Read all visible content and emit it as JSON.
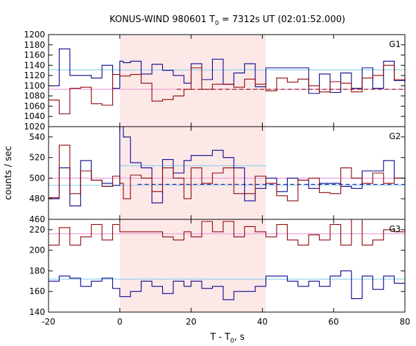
{
  "chart_data": {
    "type": "line",
    "title_main": "KONUS-WIND 980601 T",
    "title_sub": "0",
    "title_rest": " = 7312s UT (02:01:52.000)",
    "xlabel_main": "T - T",
    "xlabel_sub": "0",
    "xlabel_rest": ", s",
    "ylabel": "counts / sec",
    "xlim": [
      -20,
      80
    ],
    "xticks": [
      "-20",
      "0",
      "20",
      "40",
      "60",
      "80"
    ],
    "xtick_values": [
      -20,
      0,
      20,
      40,
      60,
      80
    ],
    "shaded_interval": [
      0,
      41
    ],
    "colors": {
      "shade": "#fde8e8",
      "dark_red": "#8b0000",
      "blue": "#00008b",
      "light_blue": "#87ceeb",
      "pink": "#ee99dd"
    },
    "panels": [
      {
        "label": "G1",
        "ylim": [
          1020,
          1200
        ],
        "yticks": [
          "1020",
          "1040",
          "1060",
          "1080",
          "1100",
          "1120",
          "1140",
          "1160",
          "1180",
          "1200"
        ],
        "ytick_values": [
          1020,
          1040,
          1060,
          1080,
          1100,
          1120,
          1140,
          1160,
          1180,
          1200
        ],
        "edges": [
          -20,
          -17,
          -14,
          -11,
          -8,
          -5,
          -2,
          0,
          1,
          3,
          6,
          9,
          12,
          15,
          18,
          20,
          23,
          26,
          29,
          32,
          35,
          38,
          41,
          44,
          47,
          50,
          53,
          56,
          59,
          62,
          65,
          68,
          71,
          74,
          77,
          80
        ],
        "series": [
          {
            "color": "blue",
            "values": [
              1100,
              1172,
              1120,
              1120,
              1115,
              1140,
              1095,
              1148,
              1145,
              1148,
              1123,
              1142,
              1130,
              1120,
              1105,
              1143,
              1112,
              1152,
              1103,
              1125,
              1143,
              1098,
              1135,
              1135,
              1135,
              1135,
              1085,
              1123,
              1087,
              1125,
              1095,
              1135,
              1095,
              1148,
              1110,
              1115
            ]
          },
          {
            "color": "dark_red",
            "values": [
              1072,
              1045,
              1095,
              1097,
              1065,
              1062,
              1122,
              1119,
              1119,
              1122,
              1105,
              1070,
              1073,
              1080,
              1093,
              1135,
              1093,
              1103,
              1103,
              1097,
              1113,
              1103,
              1090,
              1115,
              1107,
              1113,
              1100,
              1088,
              1108,
              1105,
              1088,
              1115,
              1120,
              1140,
              1112,
              1108
            ]
          }
        ],
        "ref_lines": [
          {
            "color": "light_blue",
            "value": 1131,
            "x_range": [
              -20,
              80
            ],
            "dashed": false
          },
          {
            "color": "pink",
            "value": 1093,
            "x_range": [
              -20,
              80
            ],
            "dashed": false
          },
          {
            "color": "dark_red",
            "value": 1093,
            "x_range": [
              16,
              80
            ],
            "dashed": true
          }
        ]
      },
      {
        "label": "G2",
        "ylim": [
          460,
          550
        ],
        "yticks": [
          "460",
          "480",
          "500",
          "520",
          "540"
        ],
        "ytick_values": [
          460,
          480,
          500,
          520,
          540
        ],
        "edges": [
          -20,
          -17,
          -14,
          -11,
          -8,
          -5,
          -2,
          0,
          1,
          3,
          6,
          9,
          12,
          15,
          18,
          20,
          23,
          26,
          29,
          32,
          35,
          38,
          41,
          44,
          47,
          50,
          53,
          56,
          59,
          62,
          65,
          68,
          71,
          74,
          77,
          80
        ],
        "series": [
          {
            "color": "blue",
            "values": [
              480,
              510,
              473,
              517,
              498,
              495,
              493,
              550,
              540,
              515,
              510,
              476,
              518,
              505,
              517,
              522,
              522,
              527,
              520,
              510,
              478,
              490,
              500,
              487,
              500,
              498,
              490,
              495,
              495,
              492,
              490,
              507,
              507,
              517,
              500,
              494
            ]
          },
          {
            "color": "dark_red",
            "values": [
              481,
              532,
              485,
              507,
              498,
              492,
              502,
              495,
              480,
              503,
              500,
              487,
              510,
              500,
              480,
              510,
              495,
              505,
              510,
              485,
              485,
              502,
              495,
              483,
              478,
              498,
              500,
              486,
              485,
              510,
              500,
              495,
              505,
              495,
              500,
              495
            ]
          }
        ],
        "ref_lines": [
          {
            "color": "light_blue",
            "value": 512,
            "x_range": [
              0,
              41
            ],
            "dashed": false
          },
          {
            "color": "pink",
            "value": 500,
            "x_range": [
              -20,
              80
            ],
            "dashed": false
          },
          {
            "color": "light_blue",
            "value": 493,
            "x_range": [
              -20,
              80
            ],
            "dashed": false
          },
          {
            "color": "blue",
            "value": 494,
            "x_range": [
              5,
              80
            ],
            "dashed": true
          }
        ]
      },
      {
        "label": "G3",
        "ylim": [
          140,
          230
        ],
        "yticks": [
          "140",
          "160",
          "180",
          "200",
          "220"
        ],
        "ytick_values": [
          140,
          160,
          180,
          200,
          220
        ],
        "edges": [
          -20,
          -17,
          -14,
          -11,
          -8,
          -5,
          -2,
          0,
          1,
          3,
          6,
          9,
          12,
          15,
          18,
          20,
          23,
          26,
          29,
          32,
          35,
          38,
          41,
          44,
          47,
          50,
          53,
          56,
          59,
          62,
          65,
          68,
          71,
          74,
          77,
          80
        ],
        "series": [
          {
            "color": "dark_red",
            "values": [
              205,
              222,
              205,
              213,
              225,
              210,
              225,
              218,
              218,
              218,
              218,
              218,
              213,
              210,
              218,
              213,
              228,
              218,
              228,
              213,
              223,
              218,
              213,
              225,
              210,
              205,
              215,
              210,
              225,
              205,
              230,
              205,
              210,
              220,
              218,
              225
            ]
          },
          {
            "color": "blue",
            "values": [
              170,
              175,
              173,
              165,
              170,
              173,
              163,
              155,
              155,
              160,
              170,
              165,
              158,
              170,
              165,
              170,
              163,
              165,
              152,
              160,
              160,
              165,
              175,
              175,
              170,
              165,
              170,
              165,
              175,
              180,
              153,
              175,
              162,
              175,
              168,
              160
            ]
          }
        ],
        "ref_lines": [
          {
            "color": "pink",
            "value": 216,
            "x_range": [
              -20,
              80
            ],
            "dashed": false
          },
          {
            "color": "light_blue",
            "value": 172,
            "x_range": [
              -20,
              80
            ],
            "dashed": false
          }
        ]
      }
    ]
  }
}
